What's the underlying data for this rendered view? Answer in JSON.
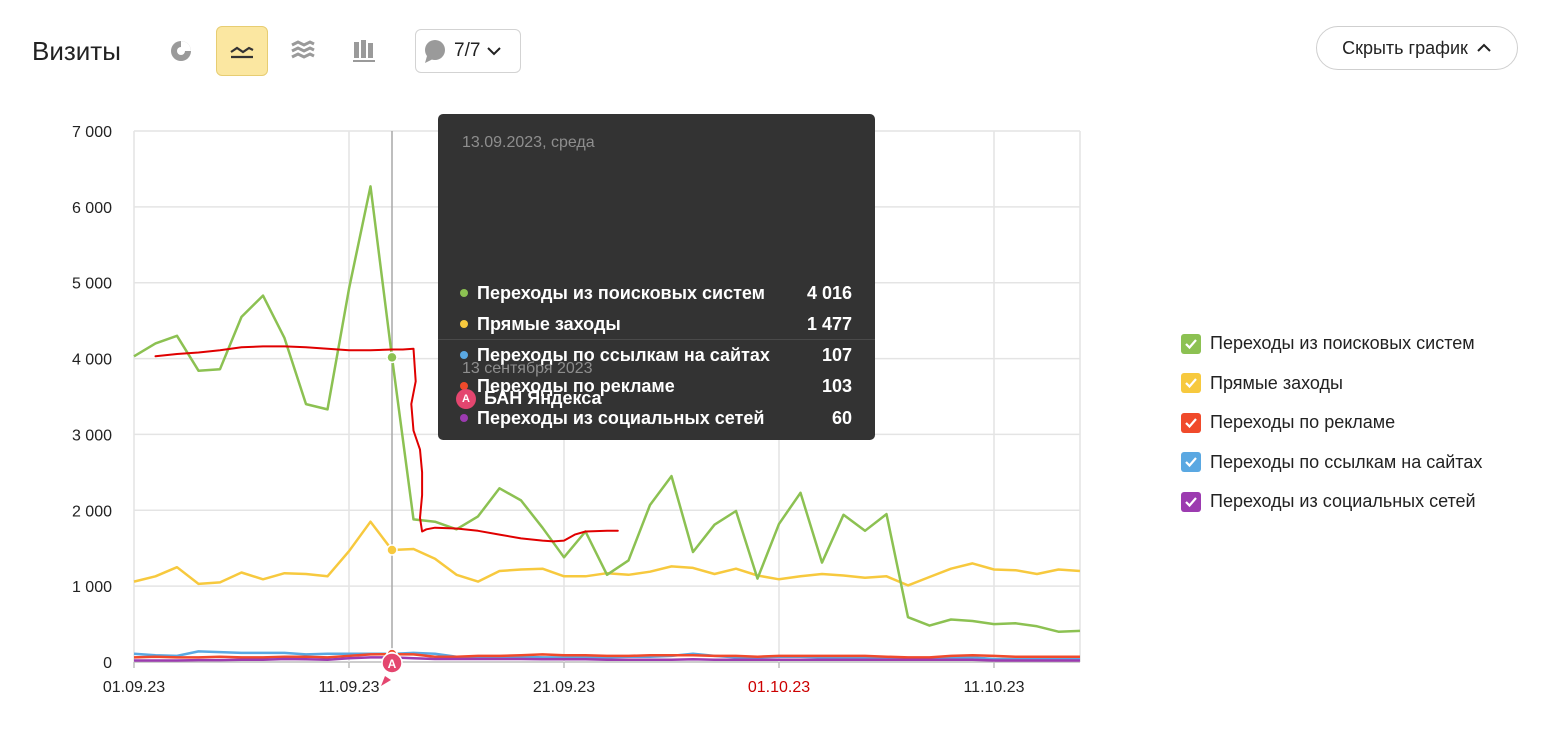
{
  "header": {
    "title": "Визиты",
    "annotations_count": "7/7",
    "hide_chart_label": "Скрыть график"
  },
  "tooltip": {
    "date": "13.09.2023, среда",
    "rows": [
      {
        "label": "Переходы из поисковых систем",
        "value": "4 016",
        "color": "#8cc152"
      },
      {
        "label": "Прямые заходы",
        "value": "1 477",
        "color": "#f7c93e"
      },
      {
        "label": "Переходы по ссылкам на сайтах",
        "value": "107",
        "color": "#5aa8e2"
      },
      {
        "label": "Переходы по рекламе",
        "value": "103",
        "color": "#f04a2b"
      },
      {
        "label": "Переходы из социальных сетей",
        "value": "60",
        "color": "#9c3bb0"
      }
    ],
    "event_date": "13 сентября 2023",
    "event_label": "БАН Яндекса",
    "event_badge": "А"
  },
  "legend": [
    {
      "label": "Переходы из поисковых систем",
      "color": "#8cc152"
    },
    {
      "label": "Прямые заходы",
      "color": "#f7c93e"
    },
    {
      "label": "Переходы по рекламе",
      "color": "#f04a2b"
    },
    {
      "label": "Переходы по ссылкам на сайтах",
      "color": "#5aa8e2"
    },
    {
      "label": "Переходы из социальных сетей",
      "color": "#9c3bb0"
    }
  ],
  "chart_data": {
    "type": "line",
    "title": "",
    "xlabel": "",
    "ylabel": "",
    "ylim": [
      0,
      7000
    ],
    "yticks": [
      0,
      1000,
      2000,
      3000,
      4000,
      5000,
      6000,
      7000
    ],
    "ytick_labels": [
      "0",
      "1 000",
      "2 000",
      "3 000",
      "4 000",
      "5 000",
      "6 000",
      "7 000"
    ],
    "xtick_labels": [
      {
        "label": "01.09.23",
        "day_index": 0,
        "color": "#222222"
      },
      {
        "label": "11.09.23",
        "day_index": 10,
        "color": "#222222"
      },
      {
        "label": "21.09.23",
        "day_index": 20,
        "color": "#222222"
      },
      {
        "label": "01.10.23",
        "day_index": 30,
        "color": "#cc0000"
      },
      {
        "label": "11.10.23",
        "day_index": 40,
        "color": "#222222"
      }
    ],
    "x_start": "2023-09-01",
    "x_end": "2023-10-15",
    "grid": true,
    "legend_position": "right",
    "highlight_index": 12,
    "event_marker": {
      "index": 12,
      "label": "А",
      "color": "#e4466f"
    },
    "series": [
      {
        "name": "Переходы из поисковых систем",
        "color": "#8cc152",
        "values": [
          4030,
          4200,
          4300,
          3840,
          3860,
          4550,
          4830,
          4270,
          3400,
          3330,
          4920,
          6270,
          4016,
          1880,
          1850,
          1750,
          1920,
          2290,
          2130,
          1770,
          1380,
          1720,
          1150,
          1340,
          2070,
          2450,
          1450,
          1810,
          1990,
          1100,
          1820,
          2230,
          1310,
          1940,
          1730,
          1950,
          590,
          480,
          560,
          540,
          500,
          510,
          470,
          400,
          410
        ]
      },
      {
        "name": "Прямые заходы",
        "color": "#f7c93e",
        "values": [
          1060,
          1130,
          1250,
          1030,
          1050,
          1180,
          1090,
          1170,
          1160,
          1130,
          1460,
          1850,
          1477,
          1490,
          1360,
          1150,
          1060,
          1200,
          1220,
          1230,
          1130,
          1130,
          1170,
          1150,
          1190,
          1260,
          1240,
          1160,
          1230,
          1140,
          1090,
          1130,
          1160,
          1140,
          1110,
          1130,
          1010,
          1120,
          1230,
          1300,
          1220,
          1210,
          1160,
          1220,
          1200
        ]
      },
      {
        "name": "Переходы по ссылкам на сайтах",
        "color": "#5aa8e2",
        "values": [
          110,
          90,
          80,
          140,
          130,
          120,
          120,
          120,
          100,
          110,
          110,
          110,
          107,
          120,
          110,
          70,
          70,
          70,
          70,
          60,
          60,
          60,
          60,
          70,
          70,
          80,
          110,
          80,
          60,
          60,
          70,
          70,
          60,
          60,
          60,
          50,
          50,
          50,
          60,
          60,
          40,
          40,
          40,
          40,
          40
        ]
      },
      {
        "name": "Переходы по рекламе",
        "color": "#f04a2b",
        "values": [
          60,
          70,
          60,
          60,
          70,
          60,
          60,
          70,
          70,
          60,
          80,
          100,
          103,
          100,
          70,
          70,
          80,
          80,
          90,
          100,
          90,
          90,
          80,
          80,
          90,
          90,
          90,
          80,
          80,
          70,
          80,
          80,
          80,
          80,
          80,
          70,
          60,
          60,
          80,
          90,
          80,
          70,
          70,
          70,
          70
        ]
      },
      {
        "name": "Переходы из социальных сетей",
        "color": "#9c3bb0",
        "values": [
          20,
          20,
          20,
          25,
          25,
          30,
          30,
          40,
          35,
          30,
          50,
          60,
          60,
          50,
          40,
          40,
          40,
          40,
          40,
          35,
          35,
          35,
          30,
          30,
          30,
          30,
          35,
          30,
          30,
          30,
          30,
          30,
          30,
          30,
          30,
          30,
          30,
          30,
          30,
          30,
          20,
          20,
          20,
          20,
          20
        ]
      }
    ],
    "drawn_annotation": {
      "color": "#e00000",
      "points": [
        [
          1,
          4030
        ],
        [
          2,
          4060
        ],
        [
          3,
          4080
        ],
        [
          3.5,
          4095
        ],
        [
          4,
          4110
        ],
        [
          5,
          4150
        ],
        [
          6,
          4160
        ],
        [
          7,
          4160
        ],
        [
          8,
          4150
        ],
        [
          9,
          4130
        ],
        [
          10,
          4110
        ],
        [
          11,
          4110
        ],
        [
          12,
          4120
        ],
        [
          12.5,
          4120
        ],
        [
          13,
          4130
        ],
        [
          13.1,
          3700
        ],
        [
          12.9,
          3400
        ],
        [
          13.0,
          3050
        ],
        [
          13.3,
          2800
        ],
        [
          13.4,
          2500
        ],
        [
          13.4,
          2200
        ],
        [
          13.3,
          1900
        ],
        [
          13.4,
          1720
        ],
        [
          13.6,
          1750
        ],
        [
          14,
          1770
        ],
        [
          15,
          1760
        ],
        [
          16,
          1730
        ],
        [
          17,
          1680
        ],
        [
          18,
          1630
        ],
        [
          19,
          1600
        ],
        [
          19.5,
          1590
        ],
        [
          20,
          1600
        ],
        [
          20.5,
          1680
        ],
        [
          21,
          1720
        ],
        [
          22,
          1730
        ],
        [
          22.5,
          1730
        ]
      ]
    }
  }
}
